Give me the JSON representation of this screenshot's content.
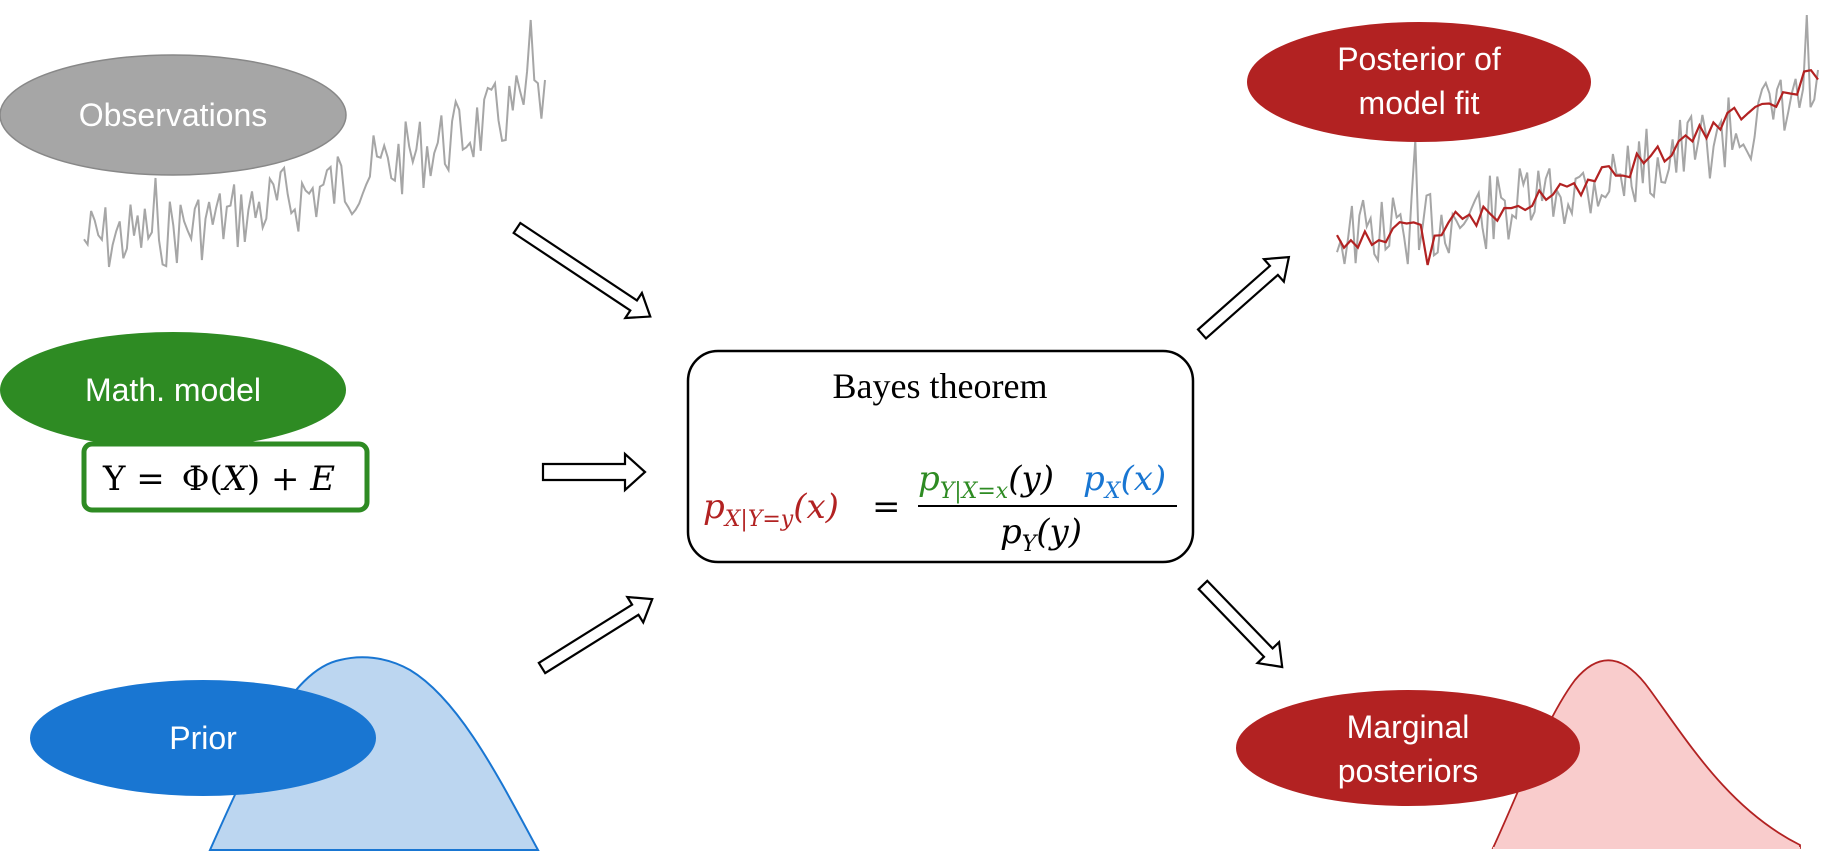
{
  "nodes": {
    "observations": {
      "label": "Observations",
      "color": "#a6a6a6"
    },
    "math_model": {
      "label": "Math. model",
      "color": "#2e8b23"
    },
    "prior": {
      "label": "Prior",
      "color": "#1976d2"
    },
    "posterior_fit": {
      "line1": "Posterior of",
      "line2": "model fit",
      "color": "#b22222"
    },
    "marginal": {
      "line1": "Marginal",
      "line2": "posteriors",
      "color": "#b22222"
    }
  },
  "model_equation": {
    "y": "Y",
    "eq": " = ",
    "phi": "Φ",
    "lpar": "(",
    "x": "X",
    "rpar": ")",
    "plus": " + ",
    "e": "E"
  },
  "bayes": {
    "title": "Bayes theorem",
    "lhs_p": "p",
    "lhs_sub": "X|Y=y",
    "lhs_arg": "(x)",
    "equals": "=",
    "num_p1": "p",
    "num_sub1": "Y|X=x",
    "num_arg1": "(y)",
    "num_p2": "p",
    "num_sub2": "X",
    "num_arg2": "(x)",
    "den_p": "p",
    "den_sub": "Y",
    "den_arg": "(y)"
  },
  "colors": {
    "observed_series": "#a6a6a6",
    "fit_series": "#b22222",
    "prior_fill": "#bcd6f0",
    "prior_stroke": "#1976d2",
    "marginal_fill": "#f9cccc",
    "marginal_stroke": "#b22222",
    "likelihood": "#2e8b23",
    "prior_term": "#1976d2",
    "posterior_term": "#b22222"
  }
}
